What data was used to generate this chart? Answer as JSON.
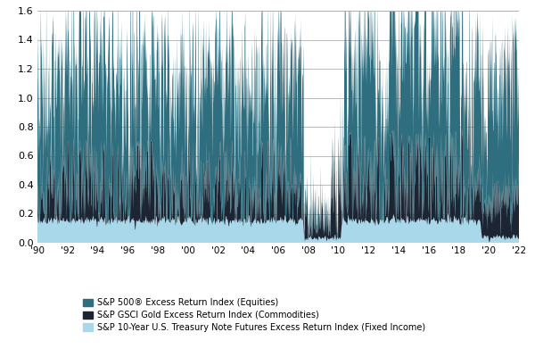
{
  "title": "",
  "xlabel": "",
  "ylabel": "",
  "xlim": [
    1990,
    2022
  ],
  "ylim": [
    0,
    1.6
  ],
  "yticks": [
    0,
    0.2,
    0.4,
    0.6,
    0.8,
    1.0,
    1.2,
    1.4,
    1.6
  ],
  "xtick_labels": [
    "'90",
    "'92",
    "'94",
    "'96",
    "'98",
    "'00",
    "'02",
    "'04",
    "'06",
    "'08",
    "'10",
    "'12",
    "'14",
    "'16",
    "'18",
    "'20",
    "'22"
  ],
  "xtick_positions": [
    1990,
    1992,
    1994,
    1996,
    1998,
    2000,
    2002,
    2004,
    2006,
    2008,
    2010,
    2012,
    2014,
    2016,
    2018,
    2020,
    2022
  ],
  "color_equities": "#2e6e7e",
  "color_commodities": "#1c2533",
  "color_fixed_income": "#a8d8ea",
  "legend_labels": [
    "S&P 500® Excess Return Index (Equities)",
    "S&P GSCI Gold Excess Return Index (Commodities)",
    "S&P 10-Year U.S. Treasury Note Futures Excess Return Index (Fixed Income)"
  ],
  "background_color": "#ffffff",
  "grid_color": "#b0b0b0"
}
